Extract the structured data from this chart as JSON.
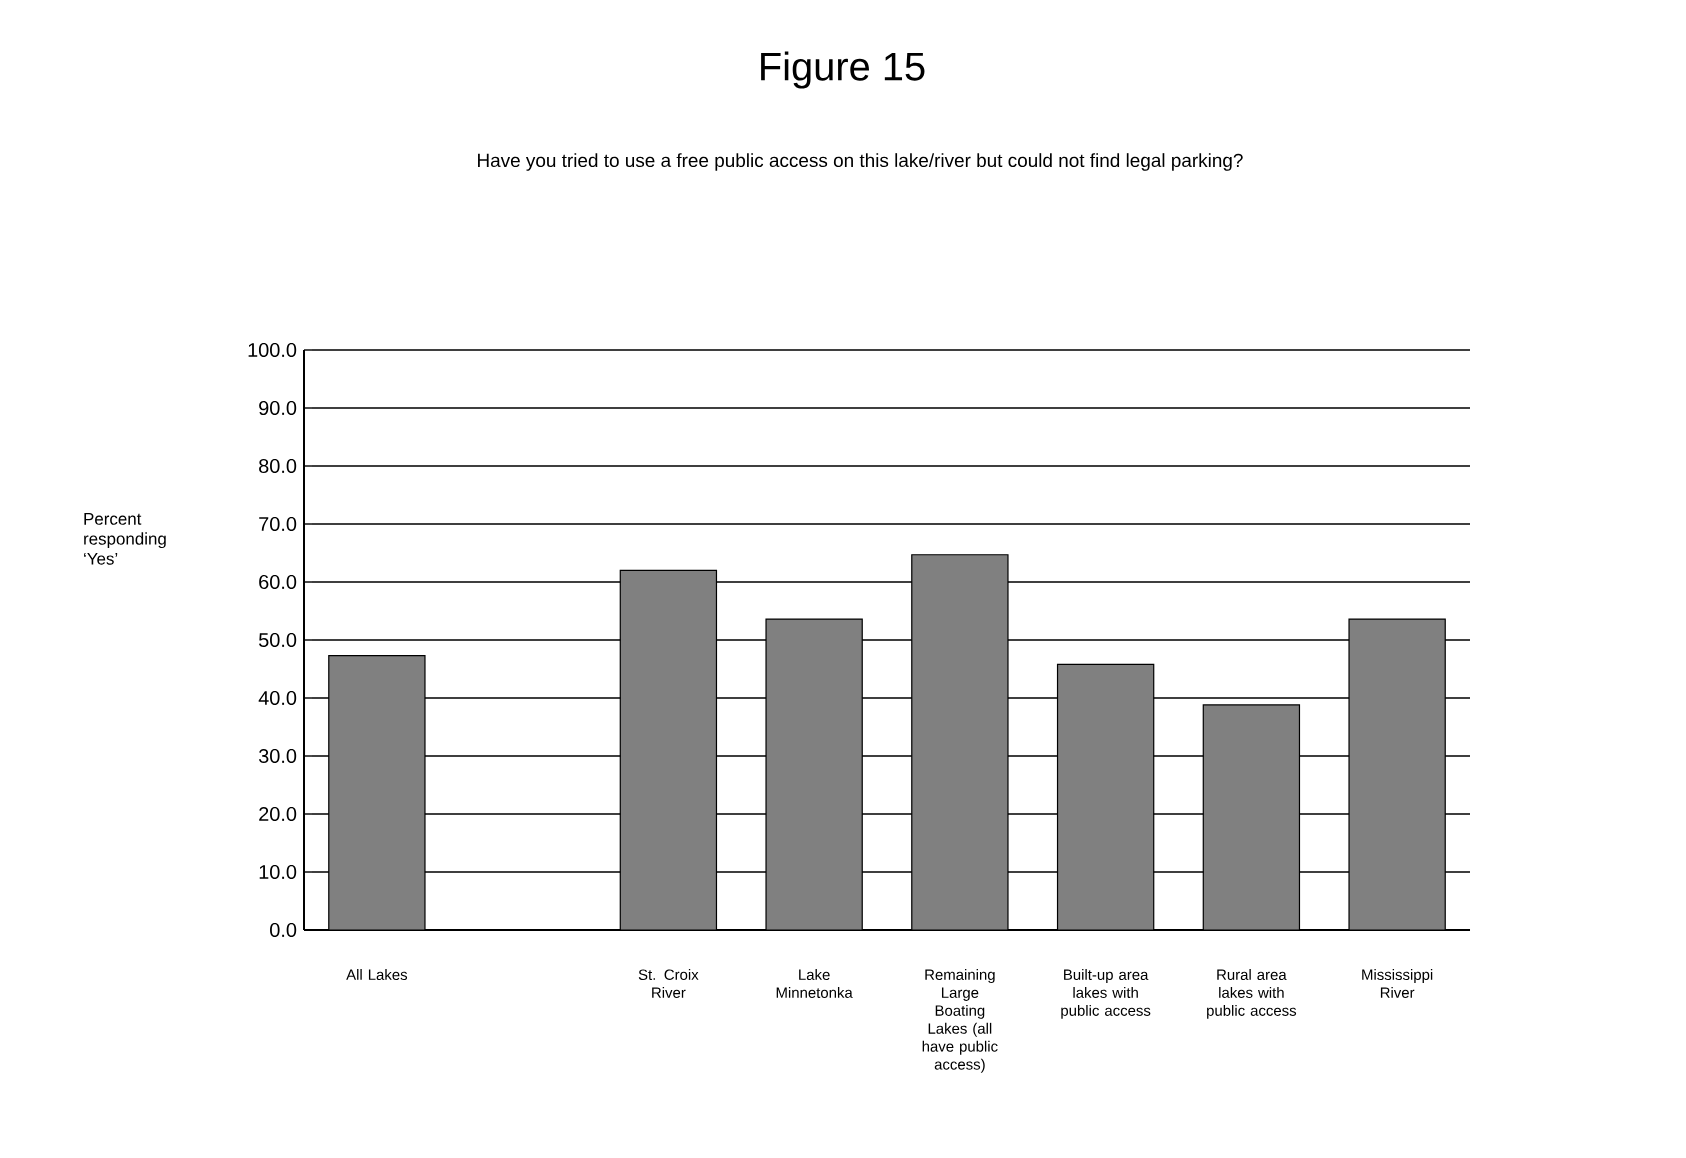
{
  "chart_data": {
    "type": "bar",
    "title": "Figure 15",
    "subtitle": "Have you tried to use a free public access on this lake/river but could not find legal parking?",
    "ylabel": "Percent responding ‘Yes’",
    "categories": [
      "All Lakes",
      null,
      "St. Croix River",
      "Lake Minnetonka",
      "Remaining Large Boating Lakes (all have public access)",
      "Built-up area lakes with public access",
      "Rural area lakes with public access",
      "Mississippi River"
    ],
    "values": [
      47.3,
      null,
      62.0,
      53.6,
      64.7,
      45.8,
      38.8,
      53.6
    ],
    "color": "#808080",
    "ylim": [
      0,
      100
    ],
    "yticks": [
      {
        "value": 0,
        "label": "0.0"
      },
      {
        "value": 10,
        "label": "10.0"
      },
      {
        "value": 20,
        "label": "20.0"
      },
      {
        "value": 30,
        "label": "30.0"
      },
      {
        "value": 40,
        "label": "40.0"
      },
      {
        "value": 50,
        "label": "50.0"
      },
      {
        "value": 60,
        "label": "60.0"
      },
      {
        "value": 70,
        "label": "70.0"
      },
      {
        "value": 80,
        "label": "80.0"
      },
      {
        "value": 90,
        "label": "90.0"
      },
      {
        "value": 100,
        "label": "100.0"
      }
    ],
    "grid": "y"
  }
}
